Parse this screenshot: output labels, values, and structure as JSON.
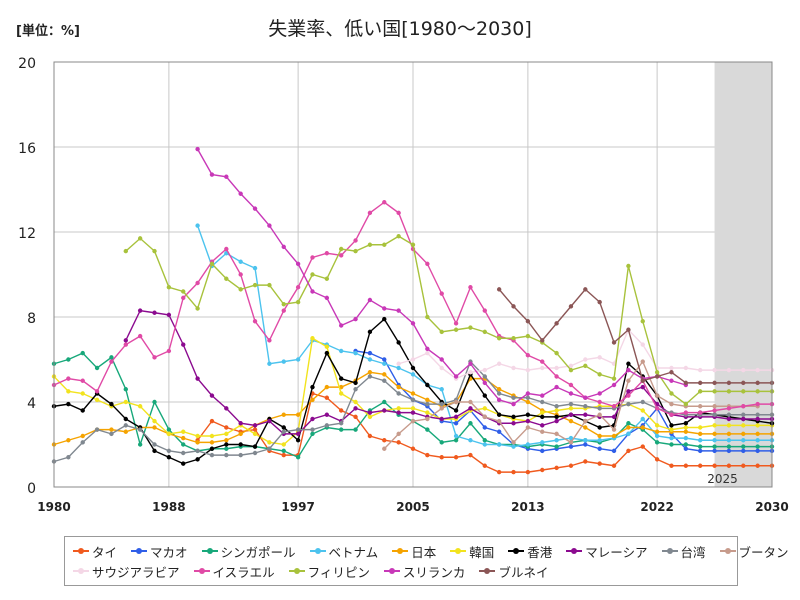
{
  "unit_label": "[単位：%]",
  "chart_data": {
    "type": "line",
    "title": "失業率、低い国[1980〜2030]",
    "xlabel": "",
    "ylabel": "",
    "xlim": [
      1980,
      2030
    ],
    "ylim": [
      0,
      20
    ],
    "x_ticks": [
      "1980",
      "1988",
      "1997",
      "2005",
      "2013",
      "2022",
      "2030"
    ],
    "x_tick_values": [
      1980,
      1988,
      1997,
      2005,
      2013,
      2022,
      2030
    ],
    "y_ticks": [
      "0",
      "4",
      "8",
      "12",
      "16",
      "20"
    ],
    "y_tick_values": [
      0,
      4,
      8,
      12,
      16,
      20
    ],
    "grid": true,
    "forecast_start": 2025,
    "forecast_label": "2025",
    "legend_position": "bottom",
    "series": [
      {
        "name": "タイ",
        "color": "#f05a1e",
        "start": 1990,
        "values": [
          2.2,
          3.1,
          2.8,
          2.6,
          2.7,
          1.7,
          1.5,
          1.5,
          4.4,
          4.2,
          3.6,
          3.3,
          2.4,
          2.2,
          2.1,
          1.8,
          1.5,
          1.4,
          1.4,
          1.5,
          1.0,
          0.7,
          0.7,
          0.7,
          0.8,
          0.9,
          1.0,
          1.2,
          1.1,
          1.0,
          1.7,
          1.9,
          1.3,
          1.0,
          1.0,
          1.0,
          1.0,
          1.0,
          1.0,
          1.0,
          1.0
        ]
      },
      {
        "name": "マカオ",
        "color": "#2f5ee8",
        "start": 2001,
        "values": [
          6.4,
          6.3,
          6.0,
          4.8,
          4.1,
          3.8,
          3.1,
          3.0,
          3.6,
          2.8,
          2.6,
          2.0,
          1.8,
          1.7,
          1.8,
          1.9,
          2.0,
          1.8,
          1.7,
          2.5,
          2.9,
          3.7,
          2.5,
          1.8,
          1.7,
          1.7,
          1.7,
          1.7,
          1.7,
          1.7
        ]
      },
      {
        "name": "シンガポール",
        "color": "#17a87a",
        "start": 1980,
        "values": [
          5.8,
          6.0,
          6.3,
          5.6,
          6.1,
          4.6,
          2.0,
          4.0,
          2.7,
          2.0,
          1.7,
          1.8,
          1.8,
          1.9,
          1.9,
          1.8,
          1.7,
          1.4,
          2.5,
          2.8,
          2.7,
          2.7,
          3.6,
          4.0,
          3.4,
          3.1,
          2.7,
          2.1,
          2.2,
          3.0,
          2.2,
          2.0,
          2.0,
          1.9,
          2.0,
          1.9,
          2.1,
          2.2,
          2.1,
          2.3,
          3.0,
          2.7,
          2.1,
          2.0,
          2.0,
          1.9,
          1.9,
          1.9,
          1.9,
          1.9,
          1.9
        ]
      },
      {
        "name": "ベトナム",
        "color": "#4cc3ee",
        "start": 1990,
        "values": [
          12.3,
          10.4,
          11.0,
          10.6,
          10.3,
          5.8,
          5.9,
          6.0,
          6.9,
          6.7,
          6.4,
          6.3,
          6.0,
          5.8,
          5.6,
          5.3,
          4.8,
          4.6,
          2.4,
          2.2,
          2.0,
          2.0,
          1.9,
          2.0,
          2.1,
          2.2,
          2.3,
          2.2,
          2.2,
          2.3,
          2.5,
          3.2,
          2.4,
          2.3,
          2.3,
          2.2,
          2.2,
          2.2,
          2.2,
          2.2,
          2.2
        ]
      },
      {
        "name": "日本",
        "color": "#f5a300",
        "start": 1980,
        "values": [
          2.0,
          2.2,
          2.4,
          2.7,
          2.7,
          2.6,
          2.8,
          2.8,
          2.5,
          2.3,
          2.1,
          2.1,
          2.2,
          2.5,
          2.9,
          3.2,
          3.4,
          3.4,
          4.1,
          4.7,
          4.7,
          5.0,
          5.4,
          5.3,
          4.7,
          4.4,
          4.1,
          3.8,
          4.0,
          5.1,
          5.1,
          4.6,
          4.3,
          4.0,
          3.6,
          3.4,
          3.1,
          2.8,
          2.4,
          2.4,
          2.8,
          2.8,
          2.6,
          2.6,
          2.6,
          2.5,
          2.5,
          2.5,
          2.5,
          2.5,
          2.5
        ]
      },
      {
        "name": "韓国",
        "color": "#f2e31e",
        "start": 1980,
        "values": [
          5.2,
          4.5,
          4.4,
          4.1,
          3.8,
          4.0,
          3.8,
          3.1,
          2.5,
          2.6,
          2.4,
          2.4,
          2.5,
          2.9,
          2.5,
          2.1,
          2.0,
          2.6,
          7.0,
          6.6,
          4.4,
          4.0,
          3.3,
          3.6,
          3.7,
          3.7,
          3.5,
          3.2,
          3.2,
          3.6,
          3.7,
          3.4,
          3.2,
          3.1,
          3.5,
          3.6,
          3.7,
          3.7,
          3.8,
          3.8,
          3.9,
          3.6,
          2.9,
          2.7,
          2.8,
          2.8,
          2.9,
          2.9,
          2.9,
          2.9,
          2.9
        ]
      },
      {
        "name": "香港",
        "color": "#000000",
        "start": 1980,
        "values": [
          3.8,
          3.9,
          3.6,
          4.4,
          3.9,
          3.2,
          2.8,
          1.7,
          1.4,
          1.1,
          1.3,
          1.8,
          2.0,
          2.0,
          1.9,
          3.2,
          2.8,
          2.2,
          4.7,
          6.3,
          5.1,
          4.9,
          7.3,
          7.9,
          6.8,
          5.6,
          4.8,
          4.0,
          3.6,
          5.3,
          4.3,
          3.4,
          3.3,
          3.4,
          3.3,
          3.3,
          3.4,
          3.1,
          2.8,
          2.9,
          5.8,
          5.2,
          4.3,
          2.9,
          3.0,
          3.5,
          3.4,
          3.3,
          3.2,
          3.1,
          3.0
        ]
      },
      {
        "name": "マレーシア",
        "color": "#8b0a8f",
        "start": 1985,
        "values": [
          6.9,
          8.3,
          8.2,
          8.1,
          6.7,
          5.1,
          4.3,
          3.7,
          3.0,
          2.9,
          3.1,
          2.5,
          2.5,
          3.2,
          3.4,
          3.1,
          3.7,
          3.5,
          3.6,
          3.5,
          3.5,
          3.3,
          3.2,
          3.3,
          3.7,
          3.3,
          3.0,
          3.0,
          3.1,
          2.9,
          3.1,
          3.4,
          3.4,
          3.3,
          3.3,
          4.5,
          4.7,
          3.9,
          3.4,
          3.3,
          3.3,
          3.3,
          3.2,
          3.2,
          3.2,
          3.2
        ]
      },
      {
        "name": "台湾",
        "color": "#808890",
        "start": 1980,
        "values": [
          1.2,
          1.4,
          2.1,
          2.7,
          2.5,
          2.9,
          2.7,
          2.0,
          1.7,
          1.6,
          1.7,
          1.5,
          1.5,
          1.5,
          1.6,
          1.8,
          2.6,
          2.7,
          2.7,
          2.9,
          3.0,
          4.6,
          5.2,
          5.0,
          4.4,
          4.1,
          3.9,
          3.9,
          4.1,
          5.9,
          5.2,
          4.4,
          4.2,
          4.2,
          4.0,
          3.8,
          3.9,
          3.8,
          3.7,
          3.7,
          3.9,
          4.0,
          3.7,
          3.5,
          3.4,
          3.4,
          3.4,
          3.4,
          3.4,
          3.4,
          3.4
        ]
      },
      {
        "name": "ブータン",
        "color": "#c79b8c",
        "start": 2003,
        "values": [
          1.8,
          2.5,
          3.1,
          3.2,
          3.7,
          4.0,
          4.0,
          3.3,
          3.1,
          2.1,
          2.8,
          2.6,
          2.5,
          2.1,
          3.1,
          3.4,
          2.7,
          5.0,
          5.9,
          4.3,
          3.9,
          3.8,
          3.8,
          3.8,
          3.8,
          3.8,
          3.8
        ]
      },
      {
        "name": "サウジアラビア",
        "color": "#f4d7e6",
        "start": 2004,
        "values": [
          5.8,
          6.0,
          6.3,
          5.6,
          5.1,
          5.4,
          5.5,
          5.8,
          5.6,
          5.5,
          5.6,
          5.6,
          5.7,
          6.0,
          6.1,
          5.8,
          7.4,
          6.7,
          5.6,
          5.6,
          5.6,
          5.5,
          5.5,
          5.5,
          5.5,
          5.5,
          5.5
        ]
      },
      {
        "name": "イスラエル",
        "color": "#e04aa6",
        "start": 1980,
        "values": [
          4.8,
          5.1,
          5.0,
          4.5,
          5.9,
          6.7,
          7.1,
          6.1,
          6.4,
          8.9,
          9.6,
          10.6,
          11.2,
          10.0,
          7.8,
          6.9,
          8.3,
          9.4,
          10.8,
          11.0,
          10.9,
          11.6,
          12.9,
          13.4,
          12.9,
          11.2,
          10.5,
          9.1,
          7.7,
          9.4,
          8.3,
          7.1,
          6.9,
          6.2,
          5.9,
          5.2,
          4.8,
          4.2,
          4.0,
          3.8,
          4.3,
          5.0,
          3.7,
          3.4,
          3.5,
          3.5,
          3.6,
          3.7,
          3.8,
          3.9,
          3.9
        ]
      },
      {
        "name": "フィリピン",
        "color": "#a8c23c",
        "start": 1985,
        "values": [
          11.1,
          11.7,
          11.1,
          9.4,
          9.2,
          8.4,
          10.5,
          9.8,
          9.3,
          9.5,
          9.5,
          8.6,
          8.7,
          10.0,
          9.8,
          11.2,
          11.1,
          11.4,
          11.4,
          11.8,
          11.4,
          8.0,
          7.3,
          7.4,
          7.5,
          7.3,
          7.0,
          7.0,
          7.1,
          6.8,
          6.3,
          5.5,
          5.7,
          5.3,
          5.1,
          10.4,
          7.8,
          5.4,
          4.4,
          3.9,
          4.5,
          4.5,
          4.5,
          4.5,
          4.5,
          4.5
        ]
      },
      {
        "name": "スリランカ",
        "color": "#c838b8",
        "start": 1990,
        "values": [
          15.9,
          14.7,
          14.6,
          13.8,
          13.1,
          12.3,
          11.3,
          10.5,
          9.2,
          8.9,
          7.6,
          7.9,
          8.8,
          8.4,
          8.3,
          7.7,
          6.5,
          6.0,
          5.2,
          5.8,
          4.9,
          4.1,
          3.9,
          4.4,
          4.3,
          4.7,
          4.4,
          4.2,
          4.4,
          4.8,
          5.5,
          5.1,
          5.2,
          5.0,
          4.8
        ]
      },
      {
        "name": "ブルネイ",
        "color": "#8b5656",
        "start": 2011,
        "values": [
          9.3,
          8.5,
          7.8,
          6.9,
          7.7,
          8.5,
          9.3,
          8.7,
          6.8,
          7.4,
          5.0,
          5.2,
          5.4,
          4.9,
          4.9,
          4.9,
          4.9,
          4.9,
          4.9,
          4.9
        ]
      }
    ]
  }
}
